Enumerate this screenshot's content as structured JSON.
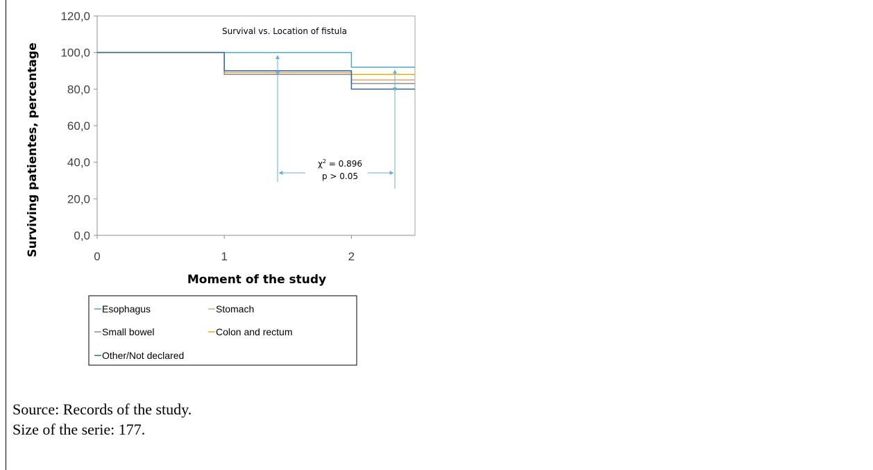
{
  "chart_data": {
    "type": "line",
    "step": true,
    "title": "Survival vs. Location of fistula",
    "xlabel": "Moment of the study",
    "ylabel": "Surviving patientes, percentage",
    "xlim": [
      0,
      2.5
    ],
    "ylim": [
      0,
      120
    ],
    "x_ticks": [
      "0",
      "1",
      "2"
    ],
    "y_ticks": [
      "0,0",
      "20,0",
      "40,0",
      "60,0",
      "80,0",
      "100,0",
      "120,0"
    ],
    "grid": false,
    "legend_position": "bottom",
    "series": [
      {
        "name": "Esophagus",
        "color": "#4aa7c9",
        "x": [
          0,
          1,
          2,
          2.5
        ],
        "y": [
          100,
          100,
          92,
          92
        ]
      },
      {
        "name": "Stomach",
        "color": "#d8a86a",
        "x": [
          0,
          1,
          2,
          2.5
        ],
        "y": [
          100,
          89,
          85,
          85
        ]
      },
      {
        "name": "Small bowel",
        "color": "#8c8c8c",
        "x": [
          0,
          1,
          2,
          2.5
        ],
        "y": [
          100,
          88,
          83,
          83
        ]
      },
      {
        "name": "Colon and rectum",
        "color": "#e2b400",
        "x": [
          0,
          1,
          2,
          2.5
        ],
        "y": [
          100,
          90,
          88,
          88
        ]
      },
      {
        "name": "Other/Not declared",
        "color": "#2f6aa8",
        "x": [
          0,
          1,
          2,
          2.5
        ],
        "y": [
          100,
          90,
          80,
          80
        ]
      }
    ],
    "annotation": {
      "line1": "χ",
      "sup": "2",
      "line1_rest": " = 0.896",
      "line2": "p > 0.05",
      "color": "#6aaed6"
    }
  },
  "notes": {
    "source": "Source: Records of the study.",
    "size": "Size of the serie: 177."
  }
}
